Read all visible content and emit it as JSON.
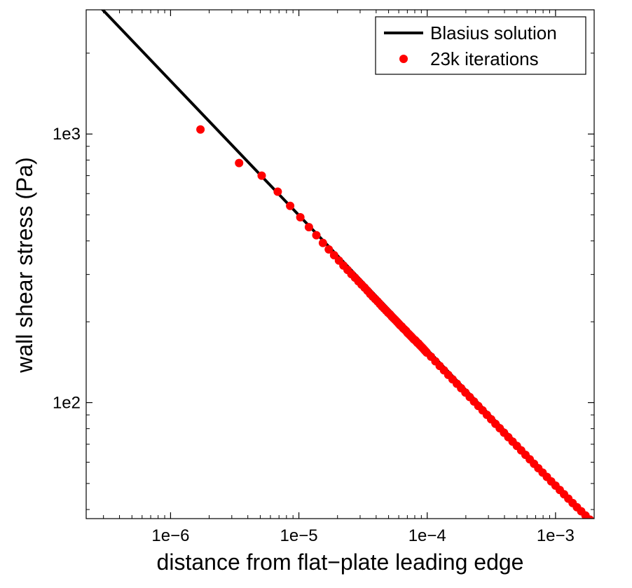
{
  "chart_data": {
    "type": "scatter",
    "scale": {
      "x": "log",
      "y": "log"
    },
    "xlim": [
      2.2e-07,
      0.002
    ],
    "ylim": [
      37,
      2900
    ],
    "xlabel": "distance from flat−plate leading edge",
    "ylabel": "wall shear stress (Pa)",
    "x_ticks": [
      {
        "value": 1e-06,
        "label": "1e−6"
      },
      {
        "value": 1e-05,
        "label": "1e−5"
      },
      {
        "value": 0.0001,
        "label": "1e−4"
      },
      {
        "value": 0.001,
        "label": "1e−3"
      }
    ],
    "y_ticks": [
      {
        "value": 100,
        "label": "1e2"
      },
      {
        "value": 1000,
        "label": "1e3"
      }
    ],
    "legend": {
      "placement": "top-right",
      "entries": [
        {
          "label": "Blasius solution",
          "style": "line",
          "color": "#000000"
        },
        {
          "label": "23k iterations",
          "style": "marker",
          "color": "#ff0000"
        }
      ]
    },
    "series": [
      {
        "name": "Blasius solution",
        "kind": "line",
        "color": "#000000",
        "x": [
          2.9e-07,
          0.002
        ],
        "y": [
          2930,
          35.2
        ]
      },
      {
        "name": "23k iterations",
        "kind": "scatter",
        "color": "#ff0000",
        "x": [
          1.71e-06,
          3.42e-06,
          5.13e-06,
          6.84e-06,
          8.55e-06,
          1.026e-05,
          1.197e-05,
          1.368e-05,
          1.539e-05,
          1.71e-05,
          1.881e-05,
          2.052e-05,
          2.223e-05,
          2.394e-05,
          2.565e-05,
          2.736e-05,
          2.907e-05,
          3.078e-05,
          3.249e-05,
          3.42e-05,
          3.591e-05,
          3.762e-05,
          3.933e-05,
          4.104e-05,
          4.275e-05,
          4.446e-05,
          4.617e-05,
          4.788e-05,
          4.959e-05,
          5.13e-05,
          5.301e-05,
          5.472e-05,
          5.643e-05,
          5.814e-05,
          5.985e-05,
          6.156e-05,
          6.327e-05,
          6.498e-05,
          6.669e-05,
          6.84e-05,
          7.011e-05,
          7.182e-05,
          7.353e-05,
          7.524e-05,
          7.695e-05,
          7.866e-05,
          8.037e-05,
          8.208e-05,
          8.379e-05,
          8.55e-05,
          8.721e-05,
          8.892e-05,
          9.063e-05,
          9.234e-05,
          9.405e-05,
          9.576e-05,
          9.747e-05,
          9.918e-05,
          0.000107,
          0.0001158,
          0.0001251,
          0.0001351,
          0.0001459,
          0.0001576,
          0.0001702,
          0.0001838,
          0.0001985,
          0.0002144,
          0.0002315,
          0.00025,
          0.00027,
          0.0002916,
          0.0003149,
          0.0003401,
          0.0003673,
          0.0003967,
          0.0004284,
          0.0004627,
          0.0004997,
          0.0005397,
          0.0005829,
          0.0006295,
          0.0006798,
          0.0007342,
          0.0007929,
          0.0008564,
          0.0009249,
          0.000999,
          0.001079,
          0.001165,
          0.001258,
          0.001359,
          0.001468,
          0.001585,
          0.001712,
          0.001849,
          0.001997
        ],
        "y": [
          1040,
          780,
          700,
          610,
          540,
          490,
          450,
          420,
          393,
          372,
          354,
          338,
          324,
          312,
          301,
          292,
          283,
          275,
          268,
          261,
          254,
          248,
          243,
          238,
          233,
          228,
          224,
          220,
          216,
          213,
          209,
          206,
          203,
          200,
          197,
          194,
          192,
          189,
          187,
          185,
          182,
          180,
          178,
          176,
          174,
          172,
          171,
          169,
          167,
          166,
          164,
          162.5,
          161,
          159.5,
          158,
          156.5,
          155,
          153.5,
          148.3,
          142.5,
          137,
          131.9,
          126.9,
          122.1,
          117.6,
          113.2,
          109,
          104.9,
          101,
          97.2,
          93.6,
          90.1,
          86.7,
          83.4,
          80.3,
          77.3,
          74.4,
          71.6,
          69,
          66.4,
          63.9,
          61.5,
          59.2,
          57,
          54.9,
          52.9,
          50.9,
          49.1,
          47.3,
          45.6,
          43.9,
          42.3,
          40.8,
          39.4,
          38,
          36.7,
          35.5
        ]
      }
    ]
  }
}
